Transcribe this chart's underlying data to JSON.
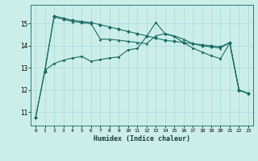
{
  "title": "",
  "xlabel": "Humidex (Indice chaleur)",
  "ylabel": "",
  "background_color": "#cceee8",
  "grid_color": "#aadddd",
  "line_color": "#1a6b65",
  "xlim": [
    -0.5,
    23.5
  ],
  "ylim": [
    10.4,
    15.85
  ],
  "xticks": [
    0,
    1,
    2,
    3,
    4,
    5,
    6,
    7,
    8,
    9,
    10,
    11,
    12,
    13,
    14,
    15,
    16,
    17,
    18,
    19,
    20,
    21,
    22,
    23
  ],
  "yticks": [
    11,
    12,
    13,
    14,
    15
  ],
  "series": [
    {
      "x": [
        0,
        1,
        2,
        3,
        4,
        5,
        6,
        7,
        8,
        9,
        10,
        11,
        12,
        13,
        14,
        15,
        16,
        17,
        18,
        19,
        20,
        21,
        22,
        23
      ],
      "y": [
        10.75,
        12.85,
        15.35,
        15.25,
        15.15,
        15.1,
        15.05,
        14.95,
        14.85,
        14.75,
        14.65,
        14.55,
        14.45,
        14.35,
        14.25,
        14.2,
        14.15,
        14.1,
        14.05,
        14.0,
        13.95,
        14.15,
        12.0,
        11.85
      ],
      "marker": "D",
      "markersize": 2.0
    },
    {
      "x": [
        1,
        2,
        3,
        4,
        5,
        6,
        7,
        8,
        9,
        10,
        11,
        12,
        13,
        14,
        15,
        16,
        17,
        18,
        19,
        20,
        21,
        22,
        23
      ],
      "y": [
        12.9,
        15.3,
        15.2,
        15.1,
        15.05,
        15.0,
        14.3,
        14.3,
        14.25,
        14.2,
        14.15,
        14.1,
        14.45,
        14.55,
        14.45,
        14.3,
        14.1,
        14.0,
        13.95,
        13.9,
        14.15,
        12.0,
        11.85
      ],
      "marker": "^",
      "markersize": 2.0
    },
    {
      "x": [
        0,
        1,
        2,
        3,
        4,
        5,
        6,
        7,
        8,
        9,
        10,
        11,
        12,
        13,
        14,
        15,
        16,
        17,
        18,
        19,
        20,
        21,
        22,
        23
      ],
      "y": [
        10.75,
        12.9,
        13.2,
        13.35,
        13.45,
        13.52,
        13.3,
        13.38,
        13.45,
        13.5,
        13.82,
        13.88,
        14.42,
        15.05,
        14.55,
        14.42,
        14.15,
        13.9,
        13.72,
        13.55,
        13.42,
        14.12,
        12.0,
        11.85
      ],
      "marker": "s",
      "markersize": 1.8
    }
  ]
}
